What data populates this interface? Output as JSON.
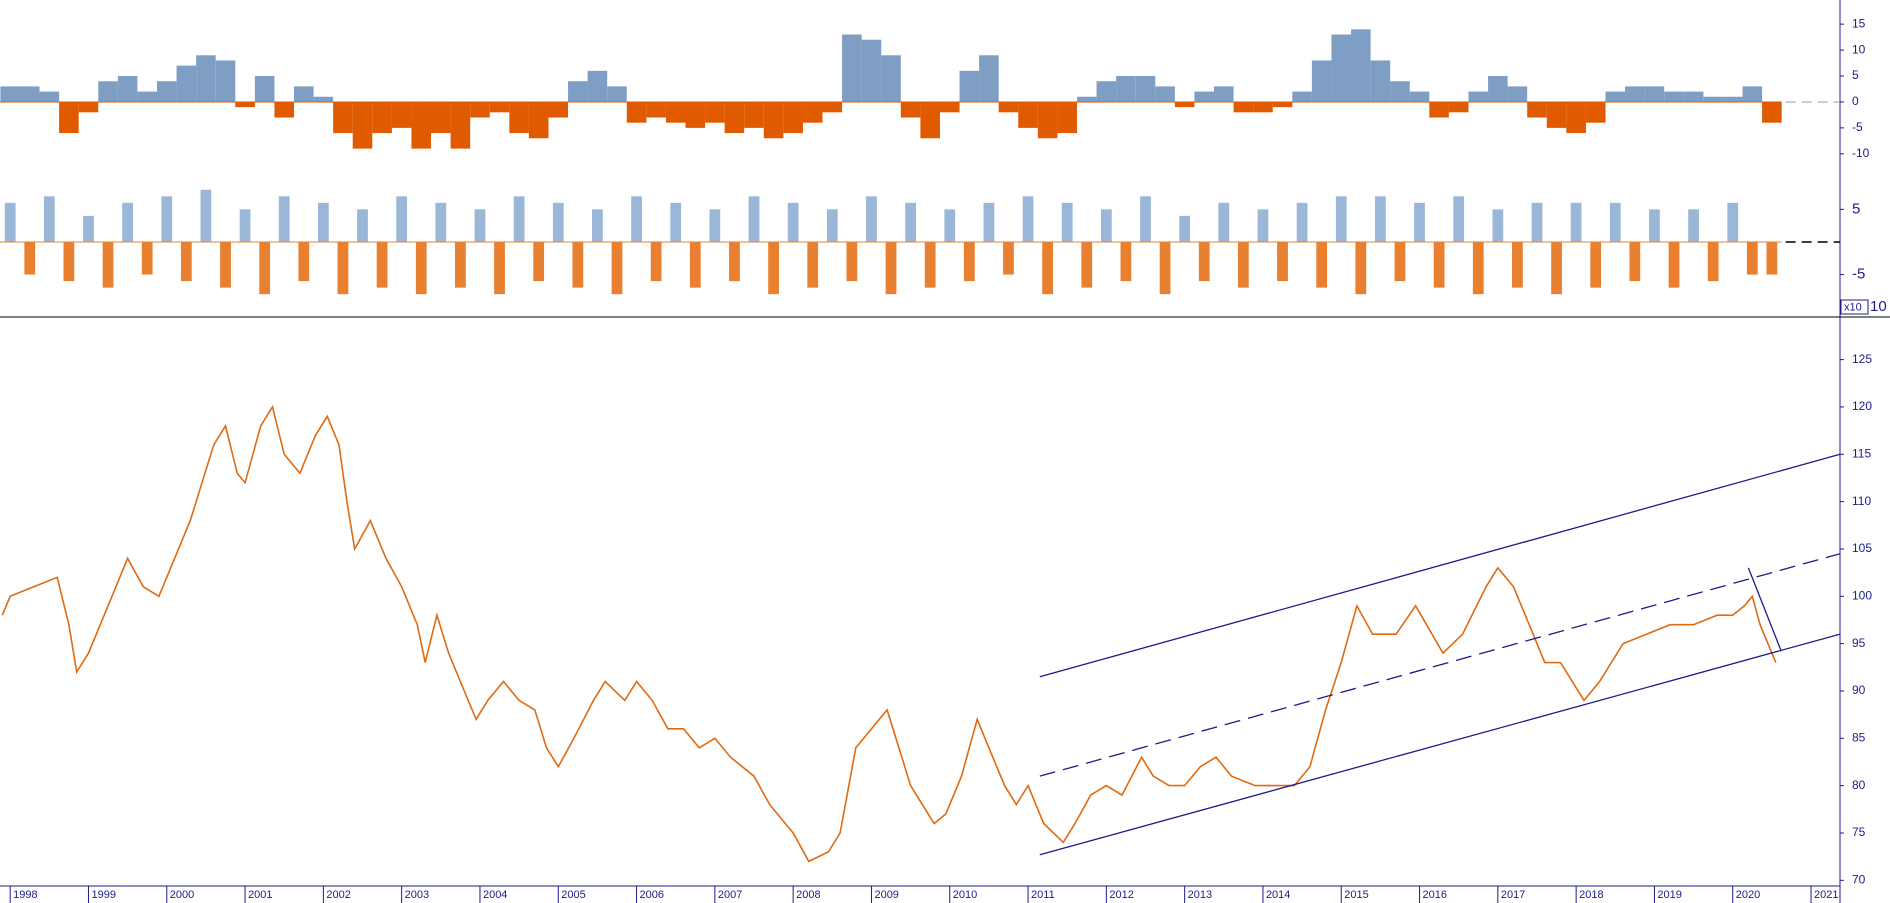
{
  "chart_data": [
    {
      "type": "bar",
      "x": [
        1998,
        1998.25,
        1998.5,
        1998.75,
        1999,
        1999.25,
        1999.5,
        1999.75,
        2000,
        2000.25,
        2000.5,
        2000.75,
        2001,
        2001.25,
        2001.5,
        2001.75,
        2002,
        2002.25,
        2002.5,
        2002.75,
        2003,
        2003.25,
        2003.5,
        2003.75,
        2004,
        2004.25,
        2004.5,
        2004.75,
        2005,
        2005.25,
        2005.5,
        2005.75,
        2006,
        2006.25,
        2006.5,
        2006.75,
        2007,
        2007.25,
        2007.5,
        2007.75,
        2008,
        2008.25,
        2008.5,
        2008.75,
        2009,
        2009.25,
        2009.5,
        2009.75,
        2010,
        2010.25,
        2010.5,
        2010.75,
        2011,
        2011.25,
        2011.5,
        2011.75,
        2012,
        2012.25,
        2012.5,
        2012.75,
        2013,
        2013.25,
        2013.5,
        2013.75,
        2014,
        2014.25,
        2014.5,
        2014.75,
        2015,
        2015.25,
        2015.5,
        2015.75,
        2016,
        2016.25,
        2016.5,
        2016.75,
        2017,
        2017.25,
        2017.5,
        2017.75,
        2018,
        2018.25,
        2018.5,
        2018.75,
        2019,
        2019.25,
        2019.5,
        2019.75,
        2020,
        2020.25,
        2020.5
      ],
      "values": [
        3,
        3,
        2,
        -6,
        -2,
        4,
        5,
        2,
        4,
        7,
        9,
        8,
        -1,
        5,
        -3,
        3,
        1,
        -6,
        -9,
        -6,
        -5,
        -9,
        -6,
        -9,
        -3,
        -2,
        -6,
        -7,
        -3,
        4,
        6,
        3,
        -4,
        -3,
        -4,
        -5,
        -4,
        -6,
        -5,
        -7,
        -6,
        -4,
        -2,
        13,
        12,
        9,
        -3,
        -7,
        -2,
        6,
        9,
        -2,
        -5,
        -7,
        -6,
        1,
        4,
        5,
        5,
        3,
        -1,
        2,
        3,
        -2,
        -2,
        -1,
        2,
        8,
        13,
        14,
        8,
        4,
        2,
        -3,
        -2,
        2,
        5,
        3,
        -3,
        -5,
        -6,
        -4,
        2,
        3,
        3,
        2,
        2,
        1,
        1,
        3,
        -4
      ],
      "color_positive": "#7f9ec4",
      "color_negative": "#e05a00",
      "xlim": [
        1997.87,
        2021.37
      ],
      "ylim": [
        -11,
        18.5
      ],
      "yticks": [
        15,
        10,
        5,
        0,
        -5,
        -10
      ]
    },
    {
      "type": "bar",
      "x": [
        1998,
        1998.25,
        1998.5,
        1998.75,
        1999,
        1999.25,
        1999.5,
        1999.75,
        2000,
        2000.25,
        2000.5,
        2000.75,
        2001,
        2001.25,
        2001.5,
        2001.75,
        2002,
        2002.25,
        2002.5,
        2002.75,
        2003,
        2003.25,
        2003.5,
        2003.75,
        2004,
        2004.25,
        2004.5,
        2004.75,
        2005,
        2005.25,
        2005.5,
        2005.75,
        2006,
        2006.25,
        2006.5,
        2006.75,
        2007,
        2007.25,
        2007.5,
        2007.75,
        2008,
        2008.25,
        2008.5,
        2008.75,
        2009,
        2009.25,
        2009.5,
        2009.75,
        2010,
        2010.25,
        2010.5,
        2010.75,
        2011,
        2011.25,
        2011.5,
        2011.75,
        2012,
        2012.25,
        2012.5,
        2012.75,
        2013,
        2013.25,
        2013.5,
        2013.75,
        2014,
        2014.25,
        2014.5,
        2014.75,
        2015,
        2015.25,
        2015.5,
        2015.75,
        2016,
        2016.25,
        2016.5,
        2016.75,
        2017,
        2017.25,
        2017.5,
        2017.75,
        2018,
        2018.25,
        2018.5,
        2018.75,
        2019,
        2019.25,
        2019.5,
        2019.75,
        2020,
        2020.25,
        2020.5
      ],
      "values": [
        6,
        -5,
        7,
        -6,
        4,
        -7,
        6,
        -5,
        7,
        -6,
        8,
        -7,
        5,
        -8,
        7,
        -6,
        6,
        -8,
        5,
        -7,
        7,
        -8,
        6,
        -7,
        5,
        -8,
        7,
        -6,
        6,
        -7,
        5,
        -8,
        7,
        -6,
        6,
        -7,
        5,
        -6,
        7,
        -8,
        6,
        -7,
        5,
        -6,
        7,
        -8,
        6,
        -7,
        5,
        -6,
        6,
        -5,
        7,
        -8,
        6,
        -7,
        5,
        -6,
        7,
        -8,
        4,
        -6,
        6,
        -7,
        5,
        -6,
        6,
        -7,
        7,
        -8,
        7,
        -6,
        6,
        -7,
        7,
        -8,
        5,
        -7,
        6,
        -8,
        6,
        -7,
        6,
        -6,
        5,
        -7,
        5,
        -6,
        6,
        -5,
        -5
      ],
      "color_positive": "#9bb7d8",
      "color_negative": "#e8802f",
      "xlim": [
        1997.87,
        2021.37
      ],
      "ylim": [
        -11.5,
        11.8
      ],
      "yticks": [
        5,
        -5,
        {
          "value": -10,
          "label": "10"
        }
      ],
      "annotation": "x10"
    },
    {
      "type": "line",
      "x": [
        1997.9,
        1998.0,
        1998.3,
        1998.6,
        1998.75,
        1998.85,
        1999.0,
        1999.3,
        1999.5,
        1999.7,
        1999.9,
        2000.1,
        2000.3,
        2000.45,
        2000.6,
        2000.75,
        2000.9,
        2001.0,
        2001.2,
        2001.35,
        2001.5,
        2001.7,
        2001.9,
        2002.05,
        2002.2,
        2002.3,
        2002.4,
        2002.6,
        2002.8,
        2003.0,
        2003.2,
        2003.3,
        2003.45,
        2003.6,
        2003.8,
        2003.95,
        2004.1,
        2004.3,
        2004.5,
        2004.7,
        2004.85,
        2005.0,
        2005.2,
        2005.45,
        2005.6,
        2005.85,
        2006.0,
        2006.2,
        2006.4,
        2006.6,
        2006.8,
        2007.0,
        2007.2,
        2007.5,
        2007.7,
        2007.9,
        2008.0,
        2008.2,
        2008.45,
        2008.6,
        2008.8,
        2009.0,
        2009.2,
        2009.35,
        2009.5,
        2009.8,
        2009.95,
        2010.15,
        2010.35,
        2010.5,
        2010.7,
        2010.85,
        2011.0,
        2011.2,
        2011.45,
        2011.6,
        2011.8,
        2012.0,
        2012.2,
        2012.45,
        2012.6,
        2012.8,
        2013.0,
        2013.2,
        2013.4,
        2013.6,
        2013.9,
        2014.2,
        2014.4,
        2014.6,
        2014.8,
        2015.0,
        2015.2,
        2015.4,
        2015.7,
        2015.95,
        2016.3,
        2016.55,
        2016.85,
        2017.0,
        2017.2,
        2017.4,
        2017.6,
        2017.8,
        2018.1,
        2018.3,
        2018.6,
        2018.9,
        2019.2,
        2019.5,
        2019.8,
        2020.0,
        2020.15,
        2020.25,
        2020.35,
        2020.55
      ],
      "values": [
        98,
        100,
        101,
        102,
        97,
        92,
        94,
        100,
        104,
        101,
        100,
        104,
        108,
        112,
        116,
        118,
        113,
        112,
        118,
        120,
        115,
        113,
        117,
        119,
        116,
        110,
        105,
        108,
        104,
        101,
        97,
        93,
        98,
        94,
        90,
        87,
        89,
        91,
        89,
        88,
        84,
        82,
        85,
        89,
        91,
        89,
        91,
        89,
        86,
        86,
        84,
        85,
        83,
        81,
        78,
        76,
        75,
        72,
        73,
        75,
        84,
        86,
        88,
        84,
        80,
        76,
        77,
        81,
        87,
        84,
        80,
        78,
        80,
        76,
        74,
        76,
        79,
        80,
        79,
        83,
        81,
        80,
        80,
        82,
        83,
        81,
        80,
        80,
        80,
        82,
        88,
        93,
        99,
        96,
        96,
        99,
        94,
        96,
        101,
        103,
        101,
        97,
        93,
        93,
        89,
        91,
        95,
        96,
        97,
        97,
        98,
        98,
        99,
        100,
        97,
        93
      ],
      "color": "#e06a10",
      "trendlines": [
        {
          "x": [
            2011.15,
            2021.37
          ],
          "y": [
            91.5,
            115
          ],
          "dashed": false
        },
        {
          "x": [
            2011.15,
            2021.37
          ],
          "y": [
            81,
            104.5
          ],
          "dashed": true
        },
        {
          "x": [
            2011.15,
            2021.37
          ],
          "y": [
            72.7,
            96
          ],
          "dashed": false
        },
        {
          "x": [
            2020.2,
            2020.62
          ],
          "y": [
            103,
            94.2
          ],
          "dashed": false
        }
      ],
      "trend_color": "#1c1c8a",
      "xlim": [
        1997.87,
        2021.37
      ],
      "ylim": [
        69.4,
        129.5
      ],
      "xticks": [
        1998,
        1999,
        2000,
        2001,
        2002,
        2003,
        2004,
        2005,
        2006,
        2007,
        2008,
        2009,
        2010,
        2011,
        2012,
        2013,
        2014,
        2015,
        2016,
        2017,
        2018,
        2019,
        2020,
        2021
      ],
      "yticks": [
        125,
        120,
        115,
        110,
        105,
        100,
        95,
        90,
        85,
        80,
        75,
        70
      ]
    }
  ]
}
